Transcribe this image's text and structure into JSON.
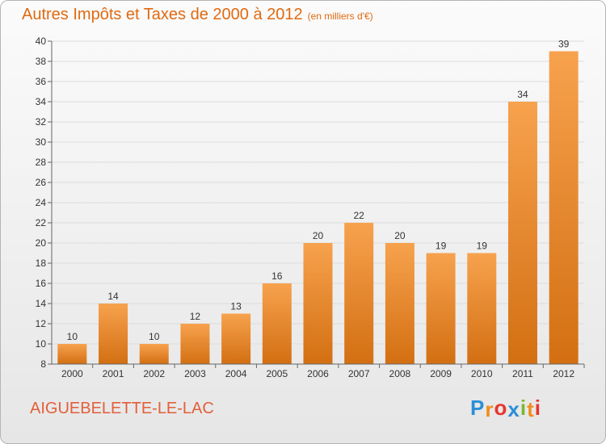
{
  "title": "Autres Impôts et Taxes de 2000 à 2012",
  "subtitle": "(en milliers d'€)",
  "commune": "AIGUEBELETTE-LE-LAC",
  "logo": {
    "letters": [
      "P",
      "r",
      "o",
      "x",
      "i",
      "t",
      "i"
    ],
    "colors": [
      "#2a8fd6",
      "#f28c1e",
      "#e8362c",
      "#2a8fd6",
      "#7ab82f",
      "#f28c1e",
      "#e8362c"
    ]
  },
  "colors": {
    "bar_top": "#f7a24e",
    "bar_bottom": "#d36f12",
    "title": "#e06a10",
    "commune": "#e2603a"
  },
  "chart_data": {
    "type": "bar",
    "title": "Autres Impôts et Taxes de 2000 à 2012",
    "subtitle": "(en milliers d'€)",
    "categories": [
      "2000",
      "2001",
      "2002",
      "2003",
      "2004",
      "2005",
      "2006",
      "2007",
      "2008",
      "2009",
      "2010",
      "2011",
      "2012"
    ],
    "values": [
      10,
      14,
      10,
      12,
      13,
      16,
      20,
      22,
      20,
      19,
      19,
      34,
      39
    ],
    "ylim": [
      8,
      40
    ],
    "yticks": [
      8,
      10,
      12,
      14,
      16,
      18,
      20,
      22,
      24,
      26,
      28,
      30,
      32,
      34,
      36,
      38,
      40
    ],
    "grid": true,
    "legend": "none"
  }
}
